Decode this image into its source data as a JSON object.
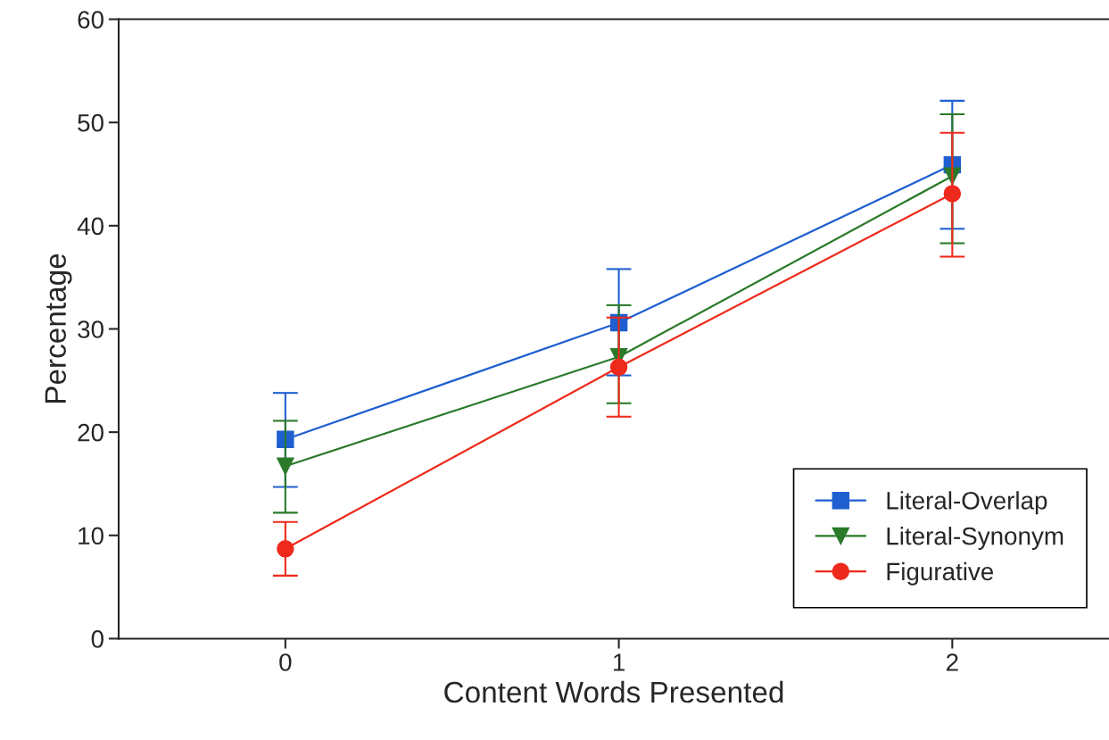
{
  "chart_data": {
    "type": "line",
    "xlabel": "Content Words Presented",
    "ylabel": "Percentage",
    "x": [
      0,
      1,
      2
    ],
    "xlim": [
      -0.5,
      2.47
    ],
    "xticks": [
      0,
      1,
      2
    ],
    "ylim": [
      0,
      60
    ],
    "yticks": [
      0,
      10,
      20,
      30,
      40,
      50,
      60
    ],
    "grid": false,
    "legend": "bottom right",
    "series": [
      {
        "name": "Literal-Overlap",
        "color": "#1f5fd0",
        "marker": "square",
        "values": [
          19.3,
          30.6,
          45.9
        ],
        "errors": [
          [
            14.7,
            23.8
          ],
          [
            25.5,
            35.8
          ],
          [
            39.7,
            52.1
          ]
        ]
      },
      {
        "name": "Literal-Synonym",
        "color": "#2a7a2a",
        "marker": "triangle",
        "values": [
          16.7,
          27.3,
          44.8
        ],
        "errors": [
          [
            12.2,
            21.1
          ],
          [
            22.8,
            32.3
          ],
          [
            38.3,
            50.8
          ]
        ]
      },
      {
        "name": "Figurative",
        "color": "#ee2a1c",
        "marker": "circle",
        "values": [
          8.7,
          26.3,
          43.1
        ],
        "errors": [
          [
            6.1,
            11.3
          ],
          [
            21.5,
            31.1
          ],
          [
            37.0,
            49.0
          ]
        ]
      }
    ]
  }
}
